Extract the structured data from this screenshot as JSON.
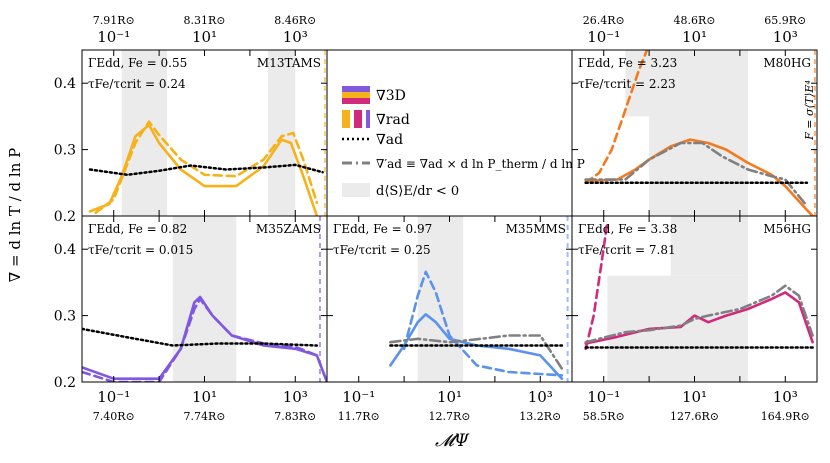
{
  "figure": {
    "xlabel": "𝓜Ψ",
    "ylabel": "∇ = d ln T / d ln P",
    "legend": [
      {
        "label": "∇3D",
        "style": "solid-gradient"
      },
      {
        "label": "∇rad",
        "style": "dashed-gradient"
      },
      {
        "label": "∇ad",
        "style": "dotted-black"
      },
      {
        "label": "∇′ad ≡ ∇ad × d ln P_therm / d ln P",
        "style": "dashdot-gray"
      },
      {
        "label": "d⟨S⟩E/dr < 0",
        "style": "gray-patch"
      }
    ],
    "colors": {
      "shade": "#ebebeb",
      "ad": "#000000",
      "adprime": "#808080"
    }
  },
  "chart_data": [
    {
      "type": "line",
      "panel": "M13TAMS",
      "name": "M13TAMS",
      "gamma": "ΓEdd, Fe = 0.55",
      "tau": "τFe/τcrit = 0.24",
      "color": "#f5b21b",
      "dash_color": "#f5b21b",
      "xscale": "log",
      "xlim": [
        0.02,
        5000
      ],
      "ylim": [
        0.2,
        0.45
      ],
      "top_ticks": [
        {
          "x": 0.1,
          "label": "7.91R⊙"
        },
        {
          "x": 10,
          "label": "8.31R⊙"
        },
        {
          "x": 1000,
          "label": "8.46R⊙"
        }
      ],
      "bottom_ticks": [],
      "xtick_labels": [
        "10⁻¹",
        "10¹",
        "10³"
      ],
      "shade": [
        [
          0.15,
          1.5
        ],
        [
          250,
          1000
        ]
      ],
      "series": [
        {
          "kind": "solid",
          "points": [
            [
              0.03,
              0.207
            ],
            [
              0.08,
              0.218
            ],
            [
              0.15,
              0.26
            ],
            [
              0.3,
              0.32
            ],
            [
              0.6,
              0.337
            ],
            [
              1.0,
              0.31
            ],
            [
              3,
              0.27
            ],
            [
              10,
              0.245
            ],
            [
              50,
              0.245
            ],
            [
              200,
              0.275
            ],
            [
              500,
              0.315
            ],
            [
              800,
              0.31
            ],
            [
              1500,
              0.26
            ],
            [
              3000,
              0.2
            ]
          ]
        },
        {
          "kind": "dashed",
          "points": [
            [
              0.04,
              0.205
            ],
            [
              0.1,
              0.225
            ],
            [
              0.3,
              0.31
            ],
            [
              0.6,
              0.342
            ],
            [
              1.0,
              0.322
            ],
            [
              3,
              0.285
            ],
            [
              10,
              0.262
            ],
            [
              50,
              0.26
            ],
            [
              200,
              0.285
            ],
            [
              500,
              0.32
            ],
            [
              900,
              0.325
            ],
            [
              1500,
              0.285
            ],
            [
              3000,
              0.22
            ]
          ]
        },
        {
          "kind": "ad",
          "points": [
            [
              0.03,
              0.27
            ],
            [
              0.2,
              0.262
            ],
            [
              1,
              0.268
            ],
            [
              5,
              0.276
            ],
            [
              30,
              0.27
            ],
            [
              200,
              0.273
            ],
            [
              1000,
              0.277
            ],
            [
              4000,
              0.266
            ]
          ]
        }
      ],
      "vline": {
        "x": 4500,
        "color": "#f5b21b"
      }
    },
    {
      "type": "line",
      "panel": "M80HG",
      "name": "M80HG",
      "gamma": "ΓEdd, Fe = 3.23",
      "tau": "τFe/τcrit = 2.23",
      "color": "#f4791f",
      "dash_color": "#f4791f",
      "xscale": "log",
      "xlim": [
        0.02,
        5000
      ],
      "ylim": [
        0.2,
        0.45
      ],
      "top_ticks": [
        {
          "x": 0.1,
          "label": "26.4R⊙"
        },
        {
          "x": 10,
          "label": "48.6R⊙"
        },
        {
          "x": 1000,
          "label": "65.9R⊙"
        }
      ],
      "bottom_ticks": [],
      "xtick_labels": [
        "10⁻¹",
        "10¹",
        "10³"
      ],
      "shade": [
        [
          0.3,
          15
        ],
        [
          1,
          150
        ]
      ],
      "shade_steps": [
        [
          [
            0.3,
            0.35
          ],
          [
            150,
            0.45
          ]
        ],
        [
          [
            1,
            0.2
          ],
          [
            150,
            0.45
          ]
        ]
      ],
      "series": [
        {
          "kind": "solid",
          "points": [
            [
              0.04,
              0.253
            ],
            [
              0.2,
              0.255
            ],
            [
              0.5,
              0.27
            ],
            [
              1,
              0.285
            ],
            [
              3,
              0.305
            ],
            [
              8,
              0.315
            ],
            [
              20,
              0.31
            ],
            [
              50,
              0.3
            ],
            [
              150,
              0.28
            ],
            [
              500,
              0.262
            ],
            [
              1000,
              0.245
            ],
            [
              2500,
              0.215
            ],
            [
              4000,
              0.2
            ]
          ]
        },
        {
          "kind": "dashed",
          "points": [
            [
              0.04,
              0.25
            ],
            [
              0.08,
              0.265
            ],
            [
              0.15,
              0.3
            ],
            [
              0.3,
              0.36
            ],
            [
              0.6,
              0.42
            ],
            [
              0.9,
              0.45
            ]
          ]
        },
        {
          "kind": "adprime",
          "points": [
            [
              0.04,
              0.255
            ],
            [
              0.3,
              0.255
            ],
            [
              1,
              0.285
            ],
            [
              5,
              0.31
            ],
            [
              15,
              0.31
            ],
            [
              40,
              0.29
            ],
            [
              150,
              0.27
            ],
            [
              500,
              0.26
            ],
            [
              1000,
              0.255
            ],
            [
              3000,
              0.215
            ]
          ]
        },
        {
          "kind": "ad",
          "points": [
            [
              0.04,
              0.25
            ],
            [
              3000,
              0.25
            ]
          ]
        }
      ],
      "vline": {
        "x": 4500,
        "color": "#f4791f"
      },
      "annotation": "F = σ⟨T⟩E⁴"
    },
    {
      "type": "line",
      "panel": "M35ZAMS",
      "name": "M35ZAMS",
      "gamma": "ΓEdd, Fe = 0.82",
      "tau": "τFe/τcrit = 0.015",
      "color": "#8158e0",
      "dash_color": "#8158e0",
      "xscale": "log",
      "xlim": [
        0.02,
        5000
      ],
      "ylim": [
        0.2,
        0.45
      ],
      "top_ticks": [],
      "bottom_ticks": [
        {
          "x": 0.1,
          "label": "7.40R⊙"
        },
        {
          "x": 10,
          "label": "7.74R⊙"
        },
        {
          "x": 1000,
          "label": "7.83R⊙"
        }
      ],
      "xtick_labels": [
        "10⁻¹",
        "10¹",
        "10³"
      ],
      "shade": [
        [
          2,
          50
        ]
      ],
      "series": [
        {
          "kind": "solid",
          "points": [
            [
              0.02,
              0.222
            ],
            [
              0.1,
              0.205
            ],
            [
              1,
              0.205
            ],
            [
              3,
              0.25
            ],
            [
              6,
              0.32
            ],
            [
              8,
              0.328
            ],
            [
              15,
              0.3
            ],
            [
              40,
              0.27
            ],
            [
              200,
              0.255
            ],
            [
              1000,
              0.25
            ],
            [
              3000,
              0.24
            ],
            [
              5000,
              0.2
            ]
          ]
        },
        {
          "kind": "dashed",
          "points": [
            [
              0.02,
              0.215
            ],
            [
              0.1,
              0.2
            ],
            [
              1,
              0.2
            ],
            [
              3,
              0.25
            ],
            [
              6,
              0.31
            ],
            [
              8,
              0.325
            ],
            [
              15,
              0.3
            ],
            [
              40,
              0.27
            ],
            [
              200,
              0.258
            ],
            [
              1000,
              0.253
            ],
            [
              3000,
              0.24
            ],
            [
              5000,
              0.2
            ]
          ]
        },
        {
          "kind": "ad",
          "points": [
            [
              0.02,
              0.28
            ],
            [
              0.3,
              0.265
            ],
            [
              2,
              0.255
            ],
            [
              20,
              0.258
            ],
            [
              200,
              0.258
            ],
            [
              3000,
              0.255
            ]
          ]
        }
      ],
      "vline": {
        "x": 3500,
        "color": "#8158e0"
      }
    },
    {
      "type": "line",
      "panel": "M35MMS",
      "name": "M35MMS",
      "gamma": "ΓEdd, Fe = 0.97",
      "tau": "τFe/τcrit = 0.25",
      "color": "#5b93ec",
      "dash_color": "#5b93ec",
      "xscale": "log",
      "xlim": [
        0.02,
        5000
      ],
      "ylim": [
        0.2,
        0.45
      ],
      "top_ticks": [],
      "bottom_ticks": [
        {
          "x": 0.1,
          "label": "11.7R⊙"
        },
        {
          "x": 10,
          "label": "12.7R⊙"
        },
        {
          "x": 1000,
          "label": "13.2R⊙"
        }
      ],
      "xtick_labels": [
        "10⁻¹",
        "10¹",
        "10³"
      ],
      "shade": [
        [
          2,
          20
        ]
      ],
      "series": [
        {
          "kind": "solid",
          "points": [
            [
              0.5,
              0.225
            ],
            [
              1,
              0.255
            ],
            [
              2,
              0.29
            ],
            [
              3,
              0.302
            ],
            [
              5,
              0.29
            ],
            [
              10,
              0.265
            ],
            [
              40,
              0.255
            ],
            [
              200,
              0.25
            ],
            [
              1000,
              0.24
            ],
            [
              3000,
              0.205
            ]
          ]
        },
        {
          "kind": "dashed",
          "points": [
            [
              1,
              0.25
            ],
            [
              2,
              0.33
            ],
            [
              3,
              0.366
            ],
            [
              5,
              0.335
            ],
            [
              10,
              0.27
            ],
            [
              40,
              0.225
            ],
            [
              200,
              0.215
            ],
            [
              1000,
              0.212
            ],
            [
              3000,
              0.21
            ]
          ]
        },
        {
          "kind": "adprime",
          "points": [
            [
              0.5,
              0.26
            ],
            [
              2,
              0.265
            ],
            [
              10,
              0.26
            ],
            [
              50,
              0.265
            ],
            [
              200,
              0.27
            ],
            [
              1000,
              0.27
            ],
            [
              3000,
              0.22
            ]
          ]
        },
        {
          "kind": "ad",
          "points": [
            [
              0.5,
              0.255
            ],
            [
              3000,
              0.255
            ]
          ]
        }
      ],
      "vline": {
        "x": 4000,
        "color": "#5b93ec"
      }
    },
    {
      "type": "line",
      "panel": "M56HG",
      "name": "M56HG",
      "gamma": "ΓEdd, Fe = 3.38",
      "tau": "τFe/τcrit = 7.81",
      "color": "#d12a7c",
      "dash_color": "#d12a7c",
      "xscale": "log",
      "xlim": [
        0.02,
        5000
      ],
      "ylim": [
        0.2,
        0.45
      ],
      "top_ticks": [],
      "bottom_ticks": [
        {
          "x": 0.1,
          "label": "58.5R⊙"
        },
        {
          "x": 10,
          "label": "127.6R⊙"
        },
        {
          "x": 1000,
          "label": "164.9R⊙"
        }
      ],
      "xtick_labels": [
        "10⁻¹",
        "10¹",
        "10³"
      ],
      "shade": [
        [
          0.12,
          150
        ]
      ],
      "shade_steps": [
        [
          [
            0.12,
            0.2
          ],
          [
            150,
            0.36
          ]
        ],
        [
          [
            3,
            0.36
          ],
          [
            150,
            0.45
          ]
        ]
      ],
      "series": [
        {
          "kind": "solid",
          "points": [
            [
              0.04,
              0.258
            ],
            [
              0.2,
              0.268
            ],
            [
              1,
              0.28
            ],
            [
              5,
              0.283
            ],
            [
              10,
              0.3
            ],
            [
              20,
              0.29
            ],
            [
              50,
              0.3
            ],
            [
              150,
              0.31
            ],
            [
              500,
              0.325
            ],
            [
              1000,
              0.335
            ],
            [
              2000,
              0.32
            ],
            [
              4000,
              0.26
            ]
          ]
        },
        {
          "kind": "dashed",
          "points": [
            [
              0.04,
              0.25
            ],
            [
              0.06,
              0.3
            ],
            [
              0.09,
              0.38
            ],
            [
              0.12,
              0.44
            ]
          ]
        },
        {
          "kind": "adprime",
          "points": [
            [
              0.04,
              0.26
            ],
            [
              0.3,
              0.275
            ],
            [
              1,
              0.278
            ],
            [
              5,
              0.285
            ],
            [
              10,
              0.295
            ],
            [
              20,
              0.3
            ],
            [
              100,
              0.31
            ],
            [
              500,
              0.33
            ],
            [
              1000,
              0.345
            ],
            [
              2000,
              0.33
            ],
            [
              4000,
              0.27
            ]
          ]
        },
        {
          "kind": "ad",
          "points": [
            [
              0.04,
              0.252
            ],
            [
              4000,
              0.252
            ]
          ]
        }
      ]
    }
  ]
}
